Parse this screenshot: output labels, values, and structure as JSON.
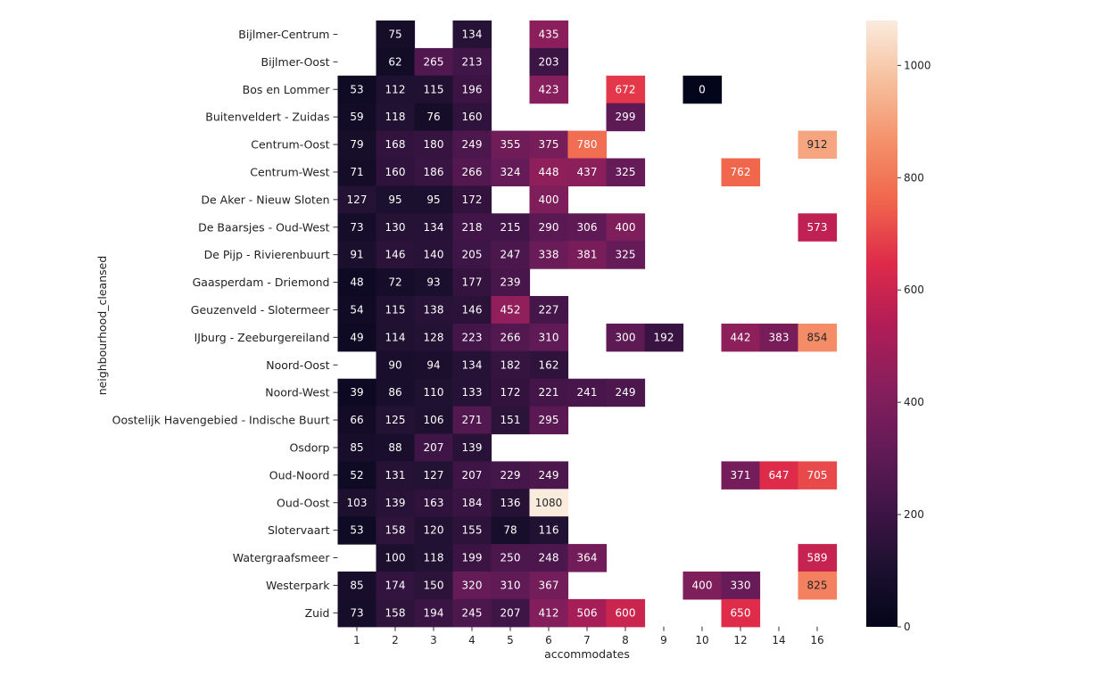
{
  "chart_data": {
    "type": "heatmap",
    "xlabel": "accommodates",
    "ylabel": "neighbourhood_cleansed",
    "x_categories": [
      "1",
      "2",
      "3",
      "4",
      "5",
      "6",
      "7",
      "8",
      "9",
      "10",
      "12",
      "14",
      "16"
    ],
    "y_categories": [
      "Bijlmer-Centrum",
      "Bijlmer-Oost",
      "Bos en Lommer",
      "Buitenveldert - Zuidas",
      "Centrum-Oost",
      "Centrum-West",
      "De Aker - Nieuw Sloten",
      "De Baarsjes - Oud-West",
      "De Pijp - Rivierenbuurt",
      "Gaasperdam - Driemond",
      "Geuzenveld - Slotermeer",
      "IJburg - Zeeburgereiland",
      "Noord-Oost",
      "Noord-West",
      "Oostelijk Havengebied - Indische Buurt",
      "Osdorp",
      "Oud-Noord",
      "Oud-Oost",
      "Slotervaart",
      "Watergraafsmeer",
      "Westerpark",
      "Zuid"
    ],
    "values": [
      [
        null,
        75,
        null,
        134,
        null,
        435,
        null,
        null,
        null,
        null,
        null,
        null,
        null
      ],
      [
        null,
        62,
        265,
        213,
        null,
        203,
        null,
        null,
        null,
        null,
        null,
        null,
        null
      ],
      [
        53,
        112,
        115,
        196,
        null,
        423,
        null,
        672,
        null,
        0,
        null,
        null,
        null
      ],
      [
        59,
        118,
        76,
        160,
        null,
        null,
        null,
        299,
        null,
        null,
        null,
        null,
        null
      ],
      [
        79,
        168,
        180,
        249,
        355,
        375,
        780,
        null,
        null,
        null,
        null,
        null,
        912
      ],
      [
        71,
        160,
        186,
        266,
        324,
        448,
        437,
        325,
        null,
        null,
        762,
        null,
        null
      ],
      [
        127,
        95,
        95,
        172,
        null,
        400,
        null,
        null,
        null,
        null,
        null,
        null,
        null
      ],
      [
        73,
        130,
        134,
        218,
        215,
        290,
        306,
        400,
        null,
        null,
        null,
        null,
        573
      ],
      [
        91,
        146,
        140,
        205,
        247,
        338,
        381,
        325,
        null,
        null,
        null,
        null,
        null
      ],
      [
        48,
        72,
        93,
        177,
        239,
        null,
        null,
        null,
        null,
        null,
        null,
        null,
        null
      ],
      [
        54,
        115,
        138,
        146,
        452,
        227,
        null,
        null,
        null,
        null,
        null,
        null,
        null
      ],
      [
        49,
        114,
        128,
        223,
        266,
        310,
        null,
        300,
        192,
        null,
        442,
        383,
        854
      ],
      [
        null,
        90,
        94,
        134,
        182,
        162,
        null,
        null,
        null,
        null,
        null,
        null,
        null
      ],
      [
        39,
        86,
        110,
        133,
        172,
        221,
        241,
        249,
        null,
        null,
        null,
        null,
        null
      ],
      [
        66,
        125,
        106,
        271,
        151,
        295,
        null,
        null,
        null,
        null,
        null,
        null,
        null
      ],
      [
        85,
        88,
        207,
        139,
        null,
        null,
        null,
        null,
        null,
        null,
        null,
        null,
        null
      ],
      [
        52,
        131,
        127,
        207,
        229,
        249,
        null,
        null,
        null,
        null,
        371,
        647,
        705
      ],
      [
        103,
        139,
        163,
        184,
        136,
        1080,
        null,
        null,
        null,
        null,
        null,
        null,
        null
      ],
      [
        53,
        158,
        120,
        155,
        78,
        116,
        null,
        null,
        null,
        null,
        null,
        null,
        null
      ],
      [
        null,
        100,
        118,
        199,
        250,
        248,
        364,
        null,
        null,
        null,
        null,
        null,
        589
      ],
      [
        85,
        174,
        150,
        320,
        310,
        367,
        null,
        null,
        null,
        400,
        330,
        null,
        825
      ],
      [
        73,
        158,
        194,
        245,
        207,
        412,
        506,
        600,
        null,
        null,
        650,
        null,
        null
      ]
    ],
    "colorbar": {
      "min": 0,
      "max": 1080,
      "ticks": [
        "0",
        "200",
        "400",
        "600",
        "800",
        "1000"
      ]
    },
    "colormap": "rocket",
    "grid": false
  }
}
